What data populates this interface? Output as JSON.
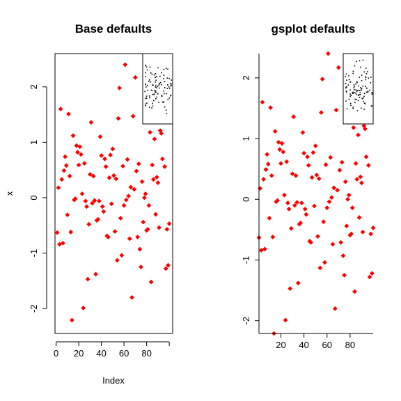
{
  "chart_data": [
    {
      "type": "scatter",
      "title": "Base defaults",
      "xlabel": "Index",
      "ylabel": "x",
      "xlim": [
        -1,
        103
      ],
      "ylim": [
        -2.45,
        2.6
      ],
      "xticks": [
        "0",
        "20",
        "40",
        "60",
        "80"
      ],
      "yticks": [
        "-2",
        "-1",
        "0",
        "1",
        "2"
      ],
      "point_color": "#ff0000",
      "series": [
        {
          "x": [
            1,
            2,
            3,
            4,
            5,
            6,
            7,
            8,
            9,
            10,
            11,
            12,
            13,
            14,
            15,
            16,
            17,
            18,
            19,
            20,
            21,
            22,
            23,
            24,
            25,
            26,
            27,
            28,
            29,
            30,
            31,
            32,
            33,
            34,
            35,
            36,
            37,
            38,
            39,
            40,
            41,
            42,
            43,
            44,
            45,
            46,
            47,
            48,
            49,
            50,
            51,
            52,
            53,
            54,
            55,
            56,
            57,
            58,
            59,
            60,
            61,
            62,
            63,
            64,
            65,
            66,
            67,
            68,
            69,
            70,
            71,
            72,
            73,
            74,
            75,
            76,
            77,
            78,
            79,
            80,
            81,
            82,
            83,
            84,
            85,
            86,
            87,
            88,
            89,
            90,
            91,
            92,
            93,
            94,
            95,
            96,
            97,
            98,
            99,
            100
          ],
          "y": [
            -0.63,
            0.18,
            -0.84,
            1.6,
            0.33,
            -0.82,
            0.49,
            0.74,
            0.58,
            -0.31,
            1.51,
            0.39,
            -0.62,
            -2.21,
            1.12,
            -0.04,
            -0.02,
            0.94,
            0.82,
            0.59,
            0.92,
            0.78,
            0.07,
            -1.99,
            0.62,
            -0.06,
            -0.16,
            -1.47,
            -0.48,
            0.42,
            1.36,
            -0.1,
            0.39,
            -0.05,
            -1.38,
            -0.41,
            -0.39,
            -0.06,
            1.1,
            0.76,
            -0.16,
            -0.25,
            0.7,
            0.56,
            -0.69,
            -0.71,
            0.36,
            0.77,
            -0.11,
            0.88,
            0.4,
            -0.61,
            0.34,
            -1.13,
            1.43,
            1.98,
            -0.37,
            -1.04,
            0.57,
            -0.14,
            2.4,
            -0.04,
            0.69,
            0.03,
            -0.74,
            0.19,
            -1.8,
            1.47,
            0.15,
            2.17,
            0.48,
            -0.71,
            0.61,
            -0.93,
            -1.25,
            0.29,
            -0.44,
            0.0,
            0.07,
            -0.59,
            -0.57,
            -0.14,
            1.18,
            -1.52,
            0.59,
            0.33,
            1.06,
            -0.3,
            0.37,
            0.27,
            -0.54,
            1.21,
            1.16,
            0.7,
            1.59,
            0.56,
            -1.28,
            -0.57,
            -1.22,
            -0.47
          ]
        }
      ],
      "inset": {
        "type": "scatter",
        "point_color": "#000000",
        "points": 100
      }
    },
    {
      "type": "scatter",
      "title": "gsplot defaults",
      "xlabel": "",
      "ylabel": "",
      "xlim": [
        1,
        100
      ],
      "ylim": [
        -2.21,
        2.4
      ],
      "xticks": [
        "20",
        "40",
        "60",
        "80"
      ],
      "yticks": [
        "-2",
        "-1",
        "0",
        "1",
        "2"
      ],
      "point_color": "#ff0000",
      "series": [
        {
          "x": [
            1,
            2,
            3,
            4,
            5,
            6,
            7,
            8,
            9,
            10,
            11,
            12,
            13,
            14,
            15,
            16,
            17,
            18,
            19,
            20,
            21,
            22,
            23,
            24,
            25,
            26,
            27,
            28,
            29,
            30,
            31,
            32,
            33,
            34,
            35,
            36,
            37,
            38,
            39,
            40,
            41,
            42,
            43,
            44,
            45,
            46,
            47,
            48,
            49,
            50,
            51,
            52,
            53,
            54,
            55,
            56,
            57,
            58,
            59,
            60,
            61,
            62,
            63,
            64,
            65,
            66,
            67,
            68,
            69,
            70,
            71,
            72,
            73,
            74,
            75,
            76,
            77,
            78,
            79,
            80,
            81,
            82,
            83,
            84,
            85,
            86,
            87,
            88,
            89,
            90,
            91,
            92,
            93,
            94,
            95,
            96,
            97,
            98,
            99,
            100
          ],
          "y": [
            -0.63,
            0.18,
            -0.84,
            1.6,
            0.33,
            -0.82,
            0.49,
            0.74,
            0.58,
            -0.31,
            1.51,
            0.39,
            -0.62,
            -2.21,
            1.12,
            -0.04,
            -0.02,
            0.94,
            0.82,
            0.59,
            0.92,
            0.78,
            0.07,
            -1.99,
            0.62,
            -0.06,
            -0.16,
            -1.47,
            -0.48,
            0.42,
            1.36,
            -0.1,
            0.39,
            -0.05,
            -1.38,
            -0.41,
            -0.39,
            -0.06,
            1.1,
            0.76,
            -0.16,
            -0.25,
            0.7,
            0.56,
            -0.69,
            -0.71,
            0.36,
            0.77,
            -0.11,
            0.88,
            0.4,
            -0.61,
            0.34,
            -1.13,
            1.43,
            1.98,
            -0.37,
            -1.04,
            0.57,
            -0.14,
            2.4,
            -0.04,
            0.69,
            0.03,
            -0.74,
            0.19,
            -1.8,
            1.47,
            0.15,
            2.17,
            0.48,
            -0.71,
            0.61,
            -0.93,
            -1.25,
            0.29,
            -0.44,
            0.0,
            0.07,
            -0.59,
            -0.57,
            -0.14,
            1.18,
            -1.52,
            0.59,
            0.33,
            1.06,
            -0.3,
            0.37,
            0.27,
            -0.54,
            1.21,
            1.16,
            0.7,
            1.59,
            0.56,
            -1.28,
            -0.57,
            -1.22,
            -0.47
          ]
        }
      ],
      "inset": {
        "type": "scatter",
        "point_color": "#000000",
        "points": 100
      }
    }
  ]
}
